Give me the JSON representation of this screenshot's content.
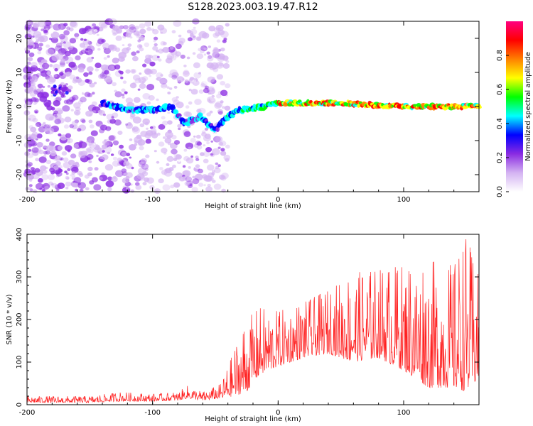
{
  "figure": {
    "title": "S128.2023.003.19.47.R12"
  },
  "chart_data": [
    {
      "type": "heatmap",
      "xlabel": "Height of straight line (km)",
      "ylabel": "Frequency (Hz)",
      "xlim": [
        -200,
        160
      ],
      "ylim": [
        -25,
        25
      ],
      "x_ticks": [
        -200,
        -100,
        0,
        100
      ],
      "y_ticks": [
        -20,
        -10,
        0,
        10,
        20
      ],
      "colorbar": {
        "label": "Normalized spectral amplitude",
        "range": [
          0,
          1
        ],
        "ticks": [
          0.0,
          0.2,
          0.4,
          0.6,
          0.8
        ],
        "tick_labels": [
          "0.0",
          "0.2",
          "0.4",
          "0.6",
          "0.8"
        ],
        "colors": [
          "#ffffff",
          "#d4b3f2",
          "#8a2be2",
          "#0000ff",
          "#00ffff",
          "#00ff00",
          "#ffff00",
          "#ff8000",
          "#ff0000",
          "#ff0080"
        ]
      },
      "signal_track": [
        {
          "x": -175,
          "y": 4
        },
        {
          "x": -140,
          "y": 1
        },
        {
          "x": -120,
          "y": -1
        },
        {
          "x": -100,
          "y": -1
        },
        {
          "x": -85,
          "y": 0
        },
        {
          "x": -75,
          "y": -5
        },
        {
          "x": -62,
          "y": -3
        },
        {
          "x": -50,
          "y": -7
        },
        {
          "x": -40,
          "y": -3
        },
        {
          "x": -30,
          "y": -1
        },
        {
          "x": -10,
          "y": 0
        },
        {
          "x": 0,
          "y": 1
        },
        {
          "x": 50,
          "y": 1
        },
        {
          "x": 100,
          "y": 0
        },
        {
          "x": 150,
          "y": 0
        }
      ],
      "grid": false
    },
    {
      "type": "line",
      "xlabel": "Height of straight line (km)",
      "ylabel": "SNR (10 * v/v)",
      "xlim": [
        -200,
        160
      ],
      "ylim": [
        0,
        400
      ],
      "x_ticks": [
        -200,
        -100,
        0,
        100
      ],
      "y_ticks": [
        0,
        100,
        200,
        300,
        400
      ],
      "color": "#ff2020",
      "envelope": [
        {
          "x": -200,
          "lo": 5,
          "hi": 20
        },
        {
          "x": -150,
          "lo": 5,
          "hi": 20
        },
        {
          "x": -125,
          "lo": 8,
          "hi": 30
        },
        {
          "x": -100,
          "lo": 8,
          "hi": 25
        },
        {
          "x": -80,
          "lo": 10,
          "hi": 30
        },
        {
          "x": -72,
          "lo": 15,
          "hi": 45
        },
        {
          "x": -60,
          "lo": 10,
          "hi": 30
        },
        {
          "x": -45,
          "lo": 15,
          "hi": 50
        },
        {
          "x": -35,
          "lo": 20,
          "hi": 130
        },
        {
          "x": -25,
          "lo": 30,
          "hi": 200
        },
        {
          "x": -15,
          "lo": 70,
          "hi": 230
        },
        {
          "x": 0,
          "lo": 90,
          "hi": 220
        },
        {
          "x": 20,
          "lo": 110,
          "hi": 240
        },
        {
          "x": 40,
          "lo": 120,
          "hi": 270
        },
        {
          "x": 60,
          "lo": 100,
          "hi": 310
        },
        {
          "x": 80,
          "lo": 110,
          "hi": 320
        },
        {
          "x": 100,
          "lo": 80,
          "hi": 330
        },
        {
          "x": 120,
          "lo": 40,
          "hi": 340
        },
        {
          "x": 140,
          "lo": 40,
          "hi": 330
        },
        {
          "x": 150,
          "lo": 30,
          "hi": 400
        },
        {
          "x": 160,
          "lo": 60,
          "hi": 300
        }
      ],
      "grid": false
    }
  ]
}
